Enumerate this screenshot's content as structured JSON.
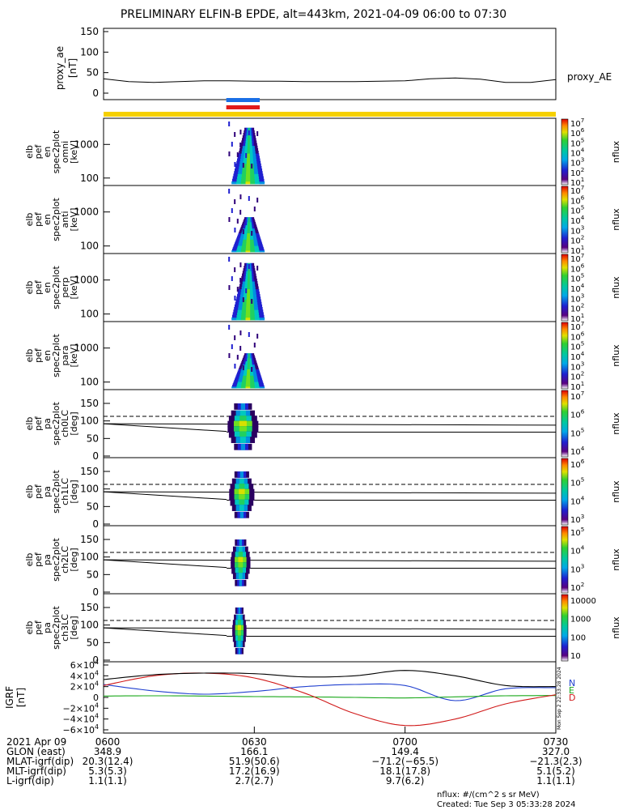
{
  "title": "PRELIMINARY ELFIN-B EPDE, alt=443km, 2021-04-09 06:00 to 07:30",
  "panels": [
    {
      "id": "proxy_ae",
      "ylabel": [
        "proxy_ae",
        "[nT]"
      ],
      "yticks": [
        "150",
        "100",
        "50",
        "0"
      ],
      "rlabel": "proxy_AE"
    },
    {
      "id": "omni",
      "ylabel": [
        "elb",
        "pef",
        "en",
        "spec2plot",
        "omni",
        "[keV]"
      ],
      "yticks": [
        "1000",
        "100"
      ],
      "cbar_ticks": [
        "10^7",
        "10^6",
        "10^5",
        "10^4",
        "10^3",
        "10^2",
        "10^1"
      ],
      "cbar_label": "nflux"
    },
    {
      "id": "anti",
      "ylabel": [
        "elb",
        "pef",
        "en",
        "spec2plot",
        "anti",
        "[keV]"
      ],
      "yticks": [
        "1000",
        "100"
      ],
      "cbar_ticks": [
        "10^7",
        "10^6",
        "10^5",
        "10^4",
        "10^3",
        "10^2",
        "10^1"
      ],
      "cbar_label": "nflux"
    },
    {
      "id": "perp",
      "ylabel": [
        "elb",
        "pef",
        "en",
        "spec2plot",
        "perp",
        "[keV]"
      ],
      "yticks": [
        "1000",
        "100"
      ],
      "cbar_ticks": [
        "10^7",
        "10^6",
        "10^5",
        "10^4",
        "10^3",
        "10^2",
        "10^1"
      ],
      "cbar_label": "nflux"
    },
    {
      "id": "para",
      "ylabel": [
        "elb",
        "pef",
        "en",
        "spec2plot",
        "para",
        "[keV]"
      ],
      "yticks": [
        "1000",
        "100"
      ],
      "cbar_ticks": [
        "10^7",
        "10^6",
        "10^5",
        "10^4",
        "10^3",
        "10^2",
        "10^1"
      ],
      "cbar_label": "nflux"
    },
    {
      "id": "ch0LC",
      "ylabel": [
        "elb",
        "pef",
        "pa",
        "spec2plot",
        "ch0LC",
        "[deg]"
      ],
      "yticks": [
        "150",
        "100",
        "50",
        "0"
      ],
      "cbar_ticks": [
        "10^7",
        "10^6",
        "10^5",
        "10^4"
      ],
      "cbar_label": "nflux"
    },
    {
      "id": "ch1LC",
      "ylabel": [
        "elb",
        "pef",
        "pa",
        "spec2plot",
        "ch1LC",
        "[deg]"
      ],
      "yticks": [
        "150",
        "100",
        "50",
        "0"
      ],
      "cbar_ticks": [
        "10^6",
        "10^5",
        "10^4",
        "10^3"
      ],
      "cbar_label": "nflux"
    },
    {
      "id": "ch2LC",
      "ylabel": [
        "elb",
        "pef",
        "pa",
        "spec2plot",
        "ch2LC",
        "[deg]"
      ],
      "yticks": [
        "150",
        "100",
        "50",
        "0"
      ],
      "cbar_ticks": [
        "10^5",
        "10^4",
        "10^3",
        "10^2"
      ],
      "cbar_label": "nflux"
    },
    {
      "id": "ch3LC",
      "ylabel": [
        "elb",
        "pef",
        "pa",
        "spec2plot",
        "ch3LC",
        "[deg]"
      ],
      "yticks": [
        "150",
        "100",
        "50",
        "0"
      ],
      "cbar_ticks": [
        "10000",
        "1000",
        "100",
        "10"
      ],
      "cbar_label": "nflux"
    },
    {
      "id": "igrf",
      "ylabel": [
        "IGRF",
        "[nT]"
      ],
      "yticks": [
        "6×10^4",
        "4×10^4",
        "2×10^4",
        "0",
        "−2×10^4",
        "−4×10^4",
        "−6×10^4"
      ],
      "legend": [
        "N",
        "E",
        "D"
      ]
    }
  ],
  "footer_rows": [
    [
      "2021 Apr 09",
      "0600",
      "0630",
      "0700",
      "0730"
    ],
    [
      "GLON (east)",
      "348.9",
      "166.1",
      "149.4",
      "327.0"
    ],
    [
      "MLAT-igrf(dip)",
      "20.3(12.4)",
      "51.9(50.6)",
      "−71.2(−65.5)",
      "−21.3(2.3)"
    ],
    [
      "MLT-igrf(dip)",
      "5.3(5.3)",
      "17.2(16.9)",
      "18.1(17.8)",
      "5.1(5.2)"
    ],
    [
      "L-igrf(dip)",
      "1.1(1.1)",
      "2.7(2.7)",
      "9.7(6.2)",
      "1.1(1.1)"
    ]
  ],
  "footnote_units": "nflux: #/(cm^2 s sr MeV)",
  "footnote_created": "Created: Tue Sep  3 05:33:28 2024",
  "side_stamp": "Mon Sep  2 22:33:28 2024",
  "colors": {
    "N": "#1f3fcf",
    "E": "#1aa81a",
    "D": "#d01818",
    "Total": "#000000",
    "science_zone": "#f5d000",
    "bar_blue": "#1a6fe6",
    "bar_red": "#e11a1a"
  },
  "chart_data": {
    "type": "line",
    "time_range": [
      "2021-04-09 06:00",
      "2021-04-09 07:30"
    ],
    "x_ticks": [
      "0600",
      "0630",
      "0700",
      "0730"
    ],
    "proxy_ae": {
      "ylim": [
        0,
        150
      ],
      "x_min": [
        0,
        5,
        10,
        15,
        20,
        25,
        30,
        35,
        40,
        45,
        50,
        55,
        60,
        65,
        70,
        75,
        80,
        85,
        90
      ],
      "values": [
        35,
        28,
        26,
        28,
        30,
        30,
        29,
        29,
        28,
        28,
        28,
        29,
        30,
        35,
        37,
        34,
        26,
        26,
        33
      ]
    },
    "spectrogram_interval_min": [
      24.5,
      31.0
    ],
    "energy_ylim_keV": [
      60,
      6000
    ],
    "pitch_angle_ylim_deg": [
      0,
      180
    ],
    "loss_cone_deg": {
      "solid_upper": [
        92,
        88
      ],
      "dashed_upper": [
        113,
        113
      ],
      "solid_lower": [
        68,
        68
      ]
    },
    "igrf": {
      "ylim": [
        -60000,
        60000
      ],
      "x_min": [
        0,
        10,
        20,
        30,
        40,
        50,
        60,
        70,
        80,
        90
      ],
      "series": [
        {
          "name": "N",
          "values": [
            24000,
            12000,
            6000,
            11000,
            20000,
            24000,
            22000,
            -6000,
            16000,
            18000
          ]
        },
        {
          "name": "E",
          "values": [
            2500,
            3000,
            2500,
            1500,
            1000,
            0,
            -1000,
            1000,
            3000,
            3500
          ]
        },
        {
          "name": "D",
          "values": [
            22000,
            40000,
            45000,
            36000,
            8000,
            -30000,
            -52000,
            -40000,
            -12000,
            5000
          ]
        },
        {
          "name": "Total",
          "values": [
            33000,
            42000,
            45000,
            44000,
            38000,
            40000,
            50000,
            40000,
            22000,
            20000
          ]
        }
      ]
    }
  }
}
